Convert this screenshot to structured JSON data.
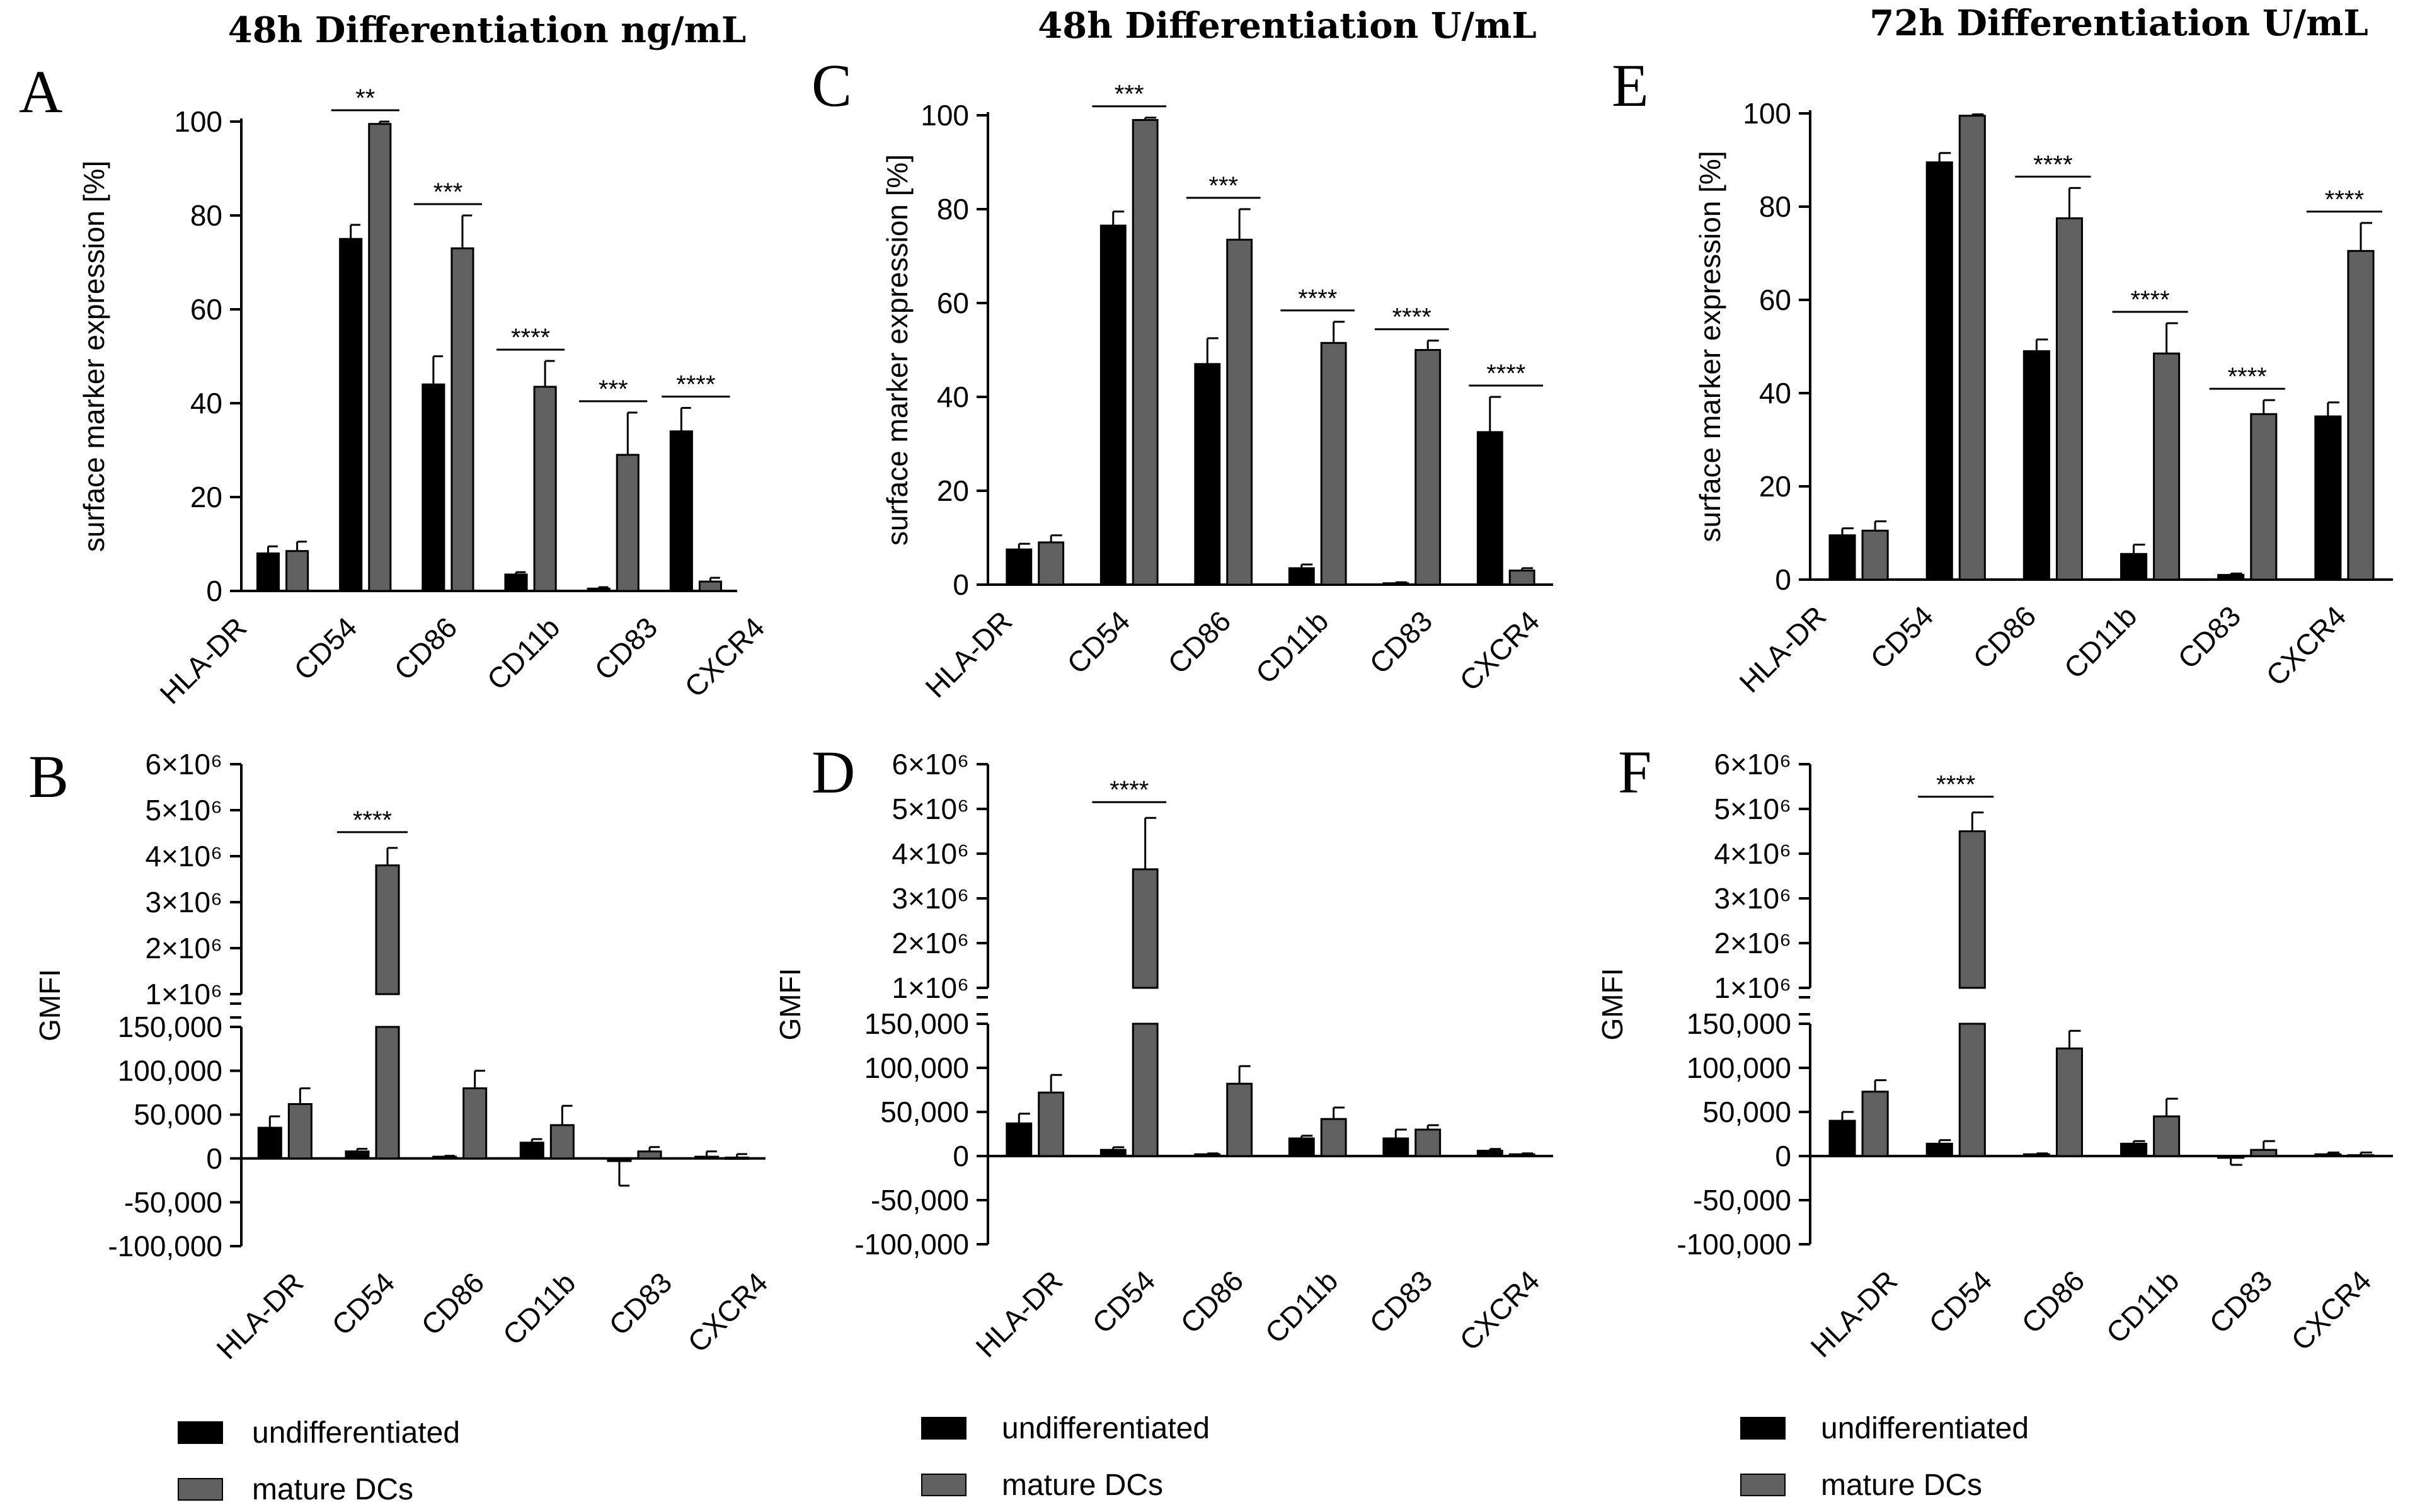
{
  "colors": {
    "undifferentiated": "#000000",
    "mature": "#606060"
  },
  "legend": {
    "undifferentiated": "undifferentiated",
    "mature": "mature DCs"
  },
  "columns": [
    {
      "title": "48h Differentiation ng/mL"
    },
    {
      "title": "48h Differentiation U/mL"
    },
    {
      "title": "72h Differentiation U/mL"
    }
  ],
  "chart_data": [
    {
      "panel": "A",
      "type": "bar",
      "ylabel": "surface marker expression [%]",
      "ylim": [
        0,
        100
      ],
      "yticks": [
        "0",
        "20",
        "40",
        "60",
        "80",
        "100"
      ],
      "categories": [
        "HLA-DR",
        "CD54",
        "CD86",
        "CD11b",
        "CD83",
        "CXCR4"
      ],
      "series": [
        {
          "name": "undifferentiated",
          "values": [
            8,
            75,
            44,
            3.5,
            0.5,
            34
          ],
          "errors": [
            1.5,
            3,
            6,
            0.5,
            0.3,
            5
          ]
        },
        {
          "name": "mature DCs",
          "values": [
            8.5,
            99.5,
            73,
            43.5,
            29,
            2
          ],
          "errors": [
            2,
            0.5,
            7,
            5.5,
            9,
            0.8
          ]
        }
      ],
      "significance": [
        "",
        "**",
        "***",
        "****",
        "***",
        "****"
      ]
    },
    {
      "panel": "B",
      "type": "bar",
      "ylabel": "GMFI",
      "ylim_lower": [
        -100000,
        150000
      ],
      "ylim_upper": [
        1000000,
        6000000
      ],
      "yticks_lower": [
        "-100,000",
        "-50,000",
        "0",
        "50,000",
        "100,000",
        "150,000"
      ],
      "yticks_upper": [
        "1×10⁶",
        "2×10⁶",
        "3×10⁶",
        "4×10⁶",
        "5×10⁶",
        "6×10⁶"
      ],
      "categories": [
        "HLA-DR",
        "CD54",
        "CD86",
        "CD11b",
        "CD83",
        "CXCR4"
      ],
      "series": [
        {
          "name": "undifferentiated",
          "values": [
            35000,
            8000,
            2000,
            18000,
            -3000,
            2000
          ],
          "errors": [
            13000,
            3000,
            1000,
            4000,
            28000,
            6000
          ]
        },
        {
          "name": "mature DCs",
          "values": [
            62000,
            3800000,
            80000,
            38000,
            8000,
            1000
          ],
          "errors": [
            18000,
            380000,
            20000,
            22000,
            5000,
            4000
          ]
        }
      ],
      "significance": [
        "",
        "****",
        "",
        "",
        "",
        ""
      ]
    },
    {
      "panel": "C",
      "type": "bar",
      "ylabel": "surface marker expression [%]",
      "ylim": [
        0,
        100
      ],
      "yticks": [
        "0",
        "20",
        "40",
        "60",
        "80",
        "100"
      ],
      "categories": [
        "HLA-DR",
        "CD54",
        "CD86",
        "CD11b",
        "CD83",
        "CXCR4"
      ],
      "series": [
        {
          "name": "undifferentiated",
          "values": [
            7.5,
            76.5,
            47,
            3.5,
            0.3,
            32.5
          ],
          "errors": [
            1.2,
            3,
            5.5,
            0.8,
            0.2,
            7.5
          ]
        },
        {
          "name": "mature DCs",
          "values": [
            9,
            99,
            73.5,
            51.5,
            50,
            3
          ],
          "errors": [
            1.5,
            0.5,
            6.5,
            4.5,
            2,
            0.5
          ]
        }
      ],
      "significance": [
        "",
        "***",
        "***",
        "****",
        "****",
        "****"
      ]
    },
    {
      "panel": "D",
      "type": "bar",
      "ylabel": "GMFI",
      "ylim_lower": [
        -100000,
        150000
      ],
      "ylim_upper": [
        1000000,
        6000000
      ],
      "yticks_lower": [
        "-100,000",
        "-50,000",
        "0",
        "50,000",
        "100,000",
        "150,000"
      ],
      "yticks_upper": [
        "1×10⁶",
        "2×10⁶",
        "3×10⁶",
        "4×10⁶",
        "5×10⁶",
        "6×10⁶"
      ],
      "categories": [
        "HLA-DR",
        "CD54",
        "CD86",
        "CD11b",
        "CD83",
        "CXCR4"
      ],
      "series": [
        {
          "name": "undifferentiated",
          "values": [
            37000,
            7000,
            2000,
            20000,
            20000,
            6000
          ],
          "errors": [
            11000,
            3000,
            1000,
            3000,
            10000,
            2000
          ]
        },
        {
          "name": "mature DCs",
          "values": [
            72000,
            3650000,
            82000,
            42000,
            30000,
            2000
          ],
          "errors": [
            20000,
            1150000,
            20000,
            13000,
            5000,
            1000
          ]
        }
      ],
      "significance": [
        "",
        "****",
        "",
        "",
        "",
        ""
      ]
    },
    {
      "panel": "E",
      "type": "bar",
      "ylabel": "surface marker expression [%]",
      "ylim": [
        0,
        100
      ],
      "yticks": [
        "0",
        "20",
        "40",
        "60",
        "80",
        "100"
      ],
      "categories": [
        "HLA-DR",
        "CD54",
        "CD86",
        "CD11b",
        "CD83",
        "CXCR4"
      ],
      "series": [
        {
          "name": "undifferentiated",
          "values": [
            9.5,
            89.5,
            49,
            5.5,
            1,
            35
          ],
          "errors": [
            1.5,
            2,
            2.5,
            2,
            0.3,
            3
          ]
        },
        {
          "name": "mature DCs",
          "values": [
            10.5,
            99.5,
            77.5,
            48.5,
            35.5,
            70.5
          ],
          "errors": [
            2,
            0.3,
            6.5,
            6.5,
            3,
            6
          ]
        }
      ],
      "significance": [
        "",
        "",
        "****",
        "****",
        "****",
        "****"
      ]
    },
    {
      "panel": "F",
      "type": "bar",
      "ylabel": "GMFI",
      "ylim_lower": [
        -100000,
        150000
      ],
      "ylim_upper": [
        1000000,
        6000000
      ],
      "yticks_lower": [
        "-100,000",
        "-50,000",
        "0",
        "50,000",
        "100,000",
        "150,000"
      ],
      "yticks_upper": [
        "1×10⁶",
        "2×10⁶",
        "3×10⁶",
        "4×10⁶",
        "5×10⁶",
        "6×10⁶"
      ],
      "categories": [
        "HLA-DR",
        "CD54",
        "CD86",
        "CD11b",
        "CD83",
        "CXCR4"
      ],
      "series": [
        {
          "name": "undifferentiated",
          "values": [
            40000,
            14000,
            2000,
            14000,
            -2000,
            2000
          ],
          "errors": [
            10000,
            4000,
            1000,
            3000,
            8000,
            2000
          ]
        },
        {
          "name": "mature DCs",
          "values": [
            73000,
            4500000,
            122000,
            45000,
            7000,
            1000
          ],
          "errors": [
            13000,
            420000,
            20000,
            20000,
            10000,
            3000
          ]
        }
      ],
      "significance": [
        "",
        "****",
        "",
        "",
        "",
        ""
      ]
    }
  ]
}
